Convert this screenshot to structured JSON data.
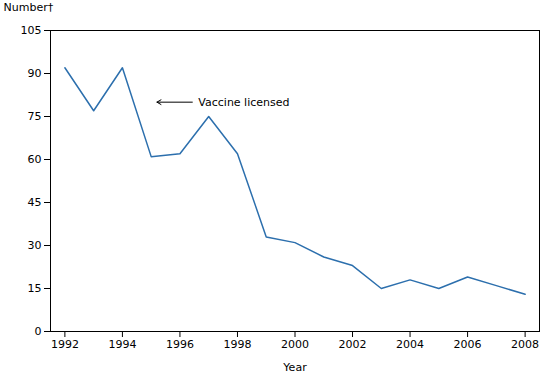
{
  "chart_data": {
    "type": "line",
    "x": [
      1992,
      1993,
      1994,
      1995,
      1996,
      1997,
      1998,
      1999,
      2000,
      2001,
      2002,
      2003,
      2004,
      2005,
      2006,
      2007,
      2008
    ],
    "values": [
      92,
      77,
      92,
      61,
      62,
      75,
      62,
      33,
      31,
      26,
      23,
      15,
      18,
      15,
      19,
      16,
      13
    ],
    "color": "#2c6fad",
    "xlabel": "Year",
    "ylabel": "Number†",
    "xlim": [
      1991.5,
      2008.5
    ],
    "xticks": [
      1992,
      1994,
      1996,
      1998,
      2000,
      2002,
      2004,
      2006,
      2008
    ],
    "ylim": [
      0,
      105
    ],
    "yticks": [
      0,
      15,
      30,
      45,
      60,
      75,
      90,
      105
    ],
    "grid": false,
    "annotations": [
      {
        "text": "Vaccine licensed",
        "x": 1996.5,
        "y": 80,
        "arrow_x": 1995.2,
        "arrow_y": 80
      }
    ]
  }
}
